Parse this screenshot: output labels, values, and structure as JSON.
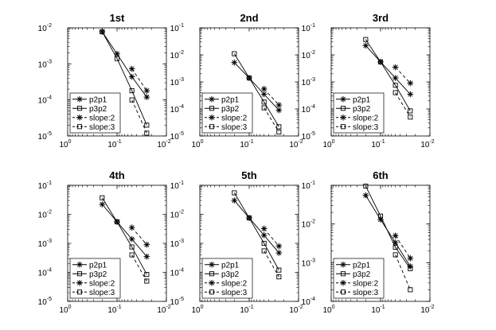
{
  "chart_data": [
    {
      "type": "line",
      "title": "1st",
      "xscale": "log",
      "yscale": "log",
      "xlim": [
        1,
        0.01
      ],
      "ylim": [
        1e-05,
        0.01
      ],
      "xticks": [
        {
          "v": 1,
          "base": "10",
          "exp": "0"
        },
        {
          "v": 0.1,
          "base": "10",
          "exp": "-1"
        },
        {
          "v": 0.01,
          "base": "10",
          "exp": "-2"
        }
      ],
      "yticks": [
        {
          "v": 1e-05,
          "base": "10",
          "exp": "-5"
        },
        {
          "v": 0.0001,
          "base": "10",
          "exp": "-4"
        },
        {
          "v": 0.001,
          "base": "10",
          "exp": "-3"
        },
        {
          "v": 0.01,
          "base": "10",
          "exp": "-2"
        }
      ],
      "legend": "bottom-left",
      "series": [
        {
          "name": "p2p1",
          "marker": "star",
          "dash": false,
          "x": [
            0.2,
            0.1,
            0.05,
            0.025
          ],
          "y": [
            0.0078,
            0.0019,
            0.00044,
            0.00012
          ]
        },
        {
          "name": "p3p2",
          "marker": "square",
          "dash": false,
          "x": [
            0.2,
            0.1,
            0.05,
            0.025
          ],
          "y": [
            0.0078,
            0.0014,
            0.00018,
            2e-05
          ]
        },
        {
          "name": "slope:2",
          "marker": "star",
          "dash": true,
          "x": [
            0.05,
            0.025
          ],
          "y": [
            0.00073,
            0.00018
          ]
        },
        {
          "name": "slope:3",
          "marker": "square",
          "dash": true,
          "x": [
            0.05,
            0.025
          ],
          "y": [
            0.0001,
            1.2e-05
          ]
        }
      ]
    },
    {
      "type": "line",
      "title": "2nd",
      "xscale": "log",
      "yscale": "log",
      "xlim": [
        1,
        0.01
      ],
      "ylim": [
        1e-05,
        0.1
      ],
      "xticks": [
        {
          "v": 1,
          "base": "10",
          "exp": "0"
        },
        {
          "v": 0.1,
          "base": "10",
          "exp": "-1"
        },
        {
          "v": 0.01,
          "base": "10",
          "exp": "-2"
        }
      ],
      "yticks": [
        {
          "v": 1e-05,
          "base": "10",
          "exp": "-5"
        },
        {
          "v": 0.0001,
          "base": "10",
          "exp": "-4"
        },
        {
          "v": 0.001,
          "base": "10",
          "exp": "-3"
        },
        {
          "v": 0.01,
          "base": "10",
          "exp": "-2"
        },
        {
          "v": 0.1,
          "base": "10",
          "exp": "-1"
        }
      ],
      "legend": "bottom-left",
      "series": [
        {
          "name": "p2p1",
          "marker": "star",
          "dash": false,
          "x": [
            0.2,
            0.1,
            0.05,
            0.025
          ],
          "y": [
            0.0052,
            0.0014,
            0.00035,
            9e-05
          ]
        },
        {
          "name": "p3p2",
          "marker": "square",
          "dash": false,
          "x": [
            0.2,
            0.1,
            0.05,
            0.025
          ],
          "y": [
            0.011,
            0.0014,
            0.00018,
            2.2e-05
          ]
        },
        {
          "name": "slope:2",
          "marker": "star",
          "dash": true,
          "x": [
            0.05,
            0.025
          ],
          "y": [
            0.00055,
            0.00014
          ]
        },
        {
          "name": "slope:3",
          "marker": "square",
          "dash": true,
          "x": [
            0.05,
            0.025
          ],
          "y": [
            0.00011,
            1.4e-05
          ]
        }
      ]
    },
    {
      "type": "line",
      "title": "3rd",
      "xscale": "log",
      "yscale": "log",
      "xlim": [
        1,
        0.01
      ],
      "ylim": [
        1e-05,
        0.1
      ],
      "xticks": [
        {
          "v": 1,
          "base": "10",
          "exp": "0"
        },
        {
          "v": 0.1,
          "base": "10",
          "exp": "-1"
        },
        {
          "v": 0.01,
          "base": "10",
          "exp": "-2"
        }
      ],
      "yticks": [
        {
          "v": 1e-05,
          "base": "10",
          "exp": "-5"
        },
        {
          "v": 0.0001,
          "base": "10",
          "exp": "-4"
        },
        {
          "v": 0.001,
          "base": "10",
          "exp": "-3"
        },
        {
          "v": 0.01,
          "base": "10",
          "exp": "-2"
        },
        {
          "v": 0.1,
          "base": "10",
          "exp": "-1"
        }
      ],
      "legend": "bottom-left",
      "series": [
        {
          "name": "p2p1",
          "marker": "star",
          "dash": false,
          "x": [
            0.2,
            0.1,
            0.05,
            0.025
          ],
          "y": [
            0.022,
            0.0055,
            0.0014,
            0.00035
          ]
        },
        {
          "name": "p3p2",
          "marker": "square",
          "dash": false,
          "x": [
            0.2,
            0.1,
            0.05,
            0.025
          ],
          "y": [
            0.037,
            0.0055,
            0.00075,
            8.5e-05
          ]
        },
        {
          "name": "slope:2",
          "marker": "star",
          "dash": true,
          "x": [
            0.05,
            0.025
          ],
          "y": [
            0.0035,
            0.0009
          ]
        },
        {
          "name": "slope:3",
          "marker": "square",
          "dash": true,
          "x": [
            0.05,
            0.025
          ],
          "y": [
            0.0004,
            5e-05
          ]
        }
      ]
    },
    {
      "type": "line",
      "title": "4th",
      "xscale": "log",
      "yscale": "log",
      "xlim": [
        1,
        0.01
      ],
      "ylim": [
        1e-05,
        0.1
      ],
      "xticks": [
        {
          "v": 1,
          "base": "10",
          "exp": "0"
        },
        {
          "v": 0.1,
          "base": "10",
          "exp": "-1"
        },
        {
          "v": 0.01,
          "base": "10",
          "exp": "-2"
        }
      ],
      "yticks": [
        {
          "v": 1e-05,
          "base": "10",
          "exp": "-5"
        },
        {
          "v": 0.0001,
          "base": "10",
          "exp": "-4"
        },
        {
          "v": 0.001,
          "base": "10",
          "exp": "-3"
        },
        {
          "v": 0.01,
          "base": "10",
          "exp": "-2"
        },
        {
          "v": 0.1,
          "base": "10",
          "exp": "-1"
        }
      ],
      "legend": "bottom-left",
      "series": [
        {
          "name": "p2p1",
          "marker": "star",
          "dash": false,
          "x": [
            0.2,
            0.1,
            0.05,
            0.025
          ],
          "y": [
            0.022,
            0.0055,
            0.0014,
            0.00035
          ]
        },
        {
          "name": "p3p2",
          "marker": "square",
          "dash": false,
          "x": [
            0.2,
            0.1,
            0.05,
            0.025
          ],
          "y": [
            0.037,
            0.0055,
            0.00075,
            8.5e-05
          ]
        },
        {
          "name": "slope:2",
          "marker": "star",
          "dash": true,
          "x": [
            0.05,
            0.025
          ],
          "y": [
            0.0035,
            0.0009
          ]
        },
        {
          "name": "slope:3",
          "marker": "square",
          "dash": true,
          "x": [
            0.05,
            0.025
          ],
          "y": [
            0.0004,
            5e-05
          ]
        }
      ]
    },
    {
      "type": "line",
      "title": "5th",
      "xscale": "log",
      "yscale": "log",
      "xlim": [
        1,
        0.01
      ],
      "ylim": [
        1e-05,
        0.1
      ],
      "xticks": [
        {
          "v": 1,
          "base": "10",
          "exp": "0"
        },
        {
          "v": 0.1,
          "base": "10",
          "exp": "-1"
        },
        {
          "v": 0.01,
          "base": "10",
          "exp": "-2"
        }
      ],
      "yticks": [
        {
          "v": 1e-05,
          "base": "10",
          "exp": "-5"
        },
        {
          "v": 0.0001,
          "base": "10",
          "exp": "-4"
        },
        {
          "v": 0.001,
          "base": "10",
          "exp": "-3"
        },
        {
          "v": 0.01,
          "base": "10",
          "exp": "-2"
        },
        {
          "v": 0.1,
          "base": "10",
          "exp": "-1"
        }
      ],
      "legend": "bottom-left",
      "series": [
        {
          "name": "p2p1",
          "marker": "star",
          "dash": false,
          "x": [
            0.2,
            0.1,
            0.05,
            0.025
          ],
          "y": [
            0.03,
            0.0075,
            0.0019,
            0.00047
          ]
        },
        {
          "name": "p3p2",
          "marker": "square",
          "dash": false,
          "x": [
            0.2,
            0.1,
            0.05,
            0.025
          ],
          "y": [
            0.055,
            0.0075,
            0.001,
            0.00012
          ]
        },
        {
          "name": "slope:2",
          "marker": "star",
          "dash": true,
          "x": [
            0.05,
            0.025
          ],
          "y": [
            0.0032,
            0.0008
          ]
        },
        {
          "name": "slope:3",
          "marker": "square",
          "dash": true,
          "x": [
            0.05,
            0.025
          ],
          "y": [
            0.00055,
            7e-05
          ]
        }
      ]
    },
    {
      "type": "line",
      "title": "6th",
      "xscale": "log",
      "yscale": "log",
      "xlim": [
        1,
        0.01
      ],
      "ylim": [
        0.0001,
        0.1
      ],
      "xticks": [
        {
          "v": 1,
          "base": "10",
          "exp": "0"
        },
        {
          "v": 0.1,
          "base": "10",
          "exp": "-1"
        },
        {
          "v": 0.01,
          "base": "10",
          "exp": "-2"
        }
      ],
      "yticks": [
        {
          "v": 0.0001,
          "base": "10",
          "exp": "-4"
        },
        {
          "v": 0.001,
          "base": "10",
          "exp": "-3"
        },
        {
          "v": 0.01,
          "base": "10",
          "exp": "-2"
        },
        {
          "v": 0.1,
          "base": "10",
          "exp": "-1"
        }
      ],
      "legend": "bottom-left",
      "series": [
        {
          "name": "p2p1",
          "marker": "star",
          "dash": false,
          "x": [
            0.2,
            0.1,
            0.05,
            0.025
          ],
          "y": [
            0.055,
            0.013,
            0.0033,
            0.0008
          ]
        },
        {
          "name": "p3p2",
          "marker": "square",
          "dash": false,
          "x": [
            0.2,
            0.1,
            0.05,
            0.025
          ],
          "y": [
            0.095,
            0.016,
            0.0025,
            0.0007
          ]
        },
        {
          "name": "slope:2",
          "marker": "star",
          "dash": true,
          "x": [
            0.05,
            0.025
          ],
          "y": [
            0.005,
            0.0013
          ]
        },
        {
          "name": "slope:3",
          "marker": "square",
          "dash": true,
          "x": [
            0.05,
            0.025
          ],
          "y": [
            0.0016,
            0.0002
          ]
        }
      ]
    }
  ]
}
